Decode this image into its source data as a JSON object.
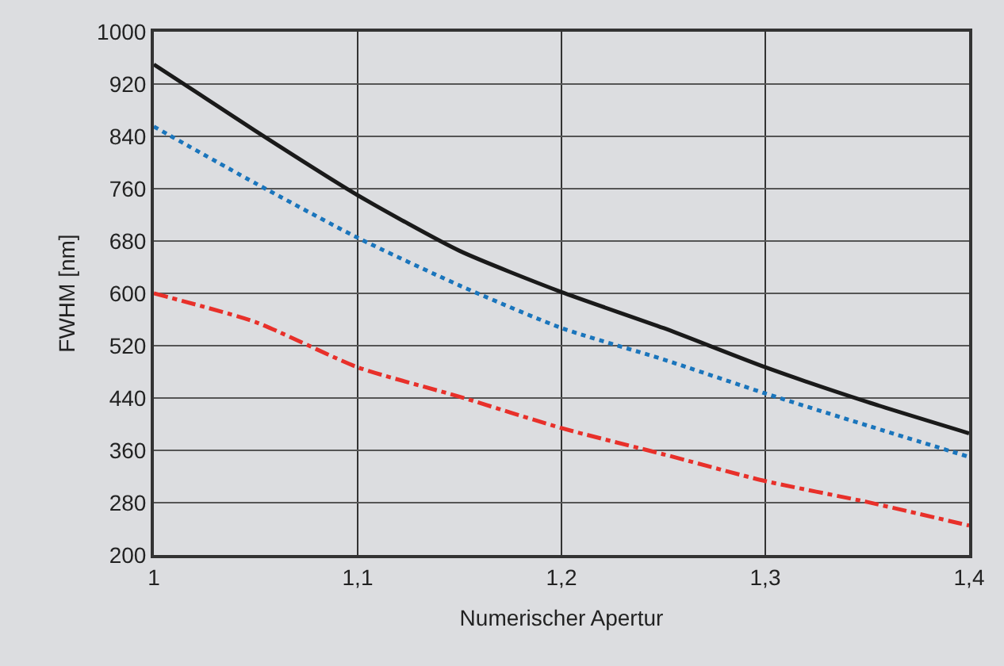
{
  "chart_data": {
    "type": "line",
    "xlabel": "Numerischer Apertur",
    "ylabel": "FWHM [nm]",
    "x": [
      1,
      1.05,
      1.1,
      1.15,
      1.2,
      1.25,
      1.3,
      1.35,
      1.4
    ],
    "series": [
      {
        "color": "#1a1a1a",
        "line_style": "solid",
        "values": [
          950,
          848,
          750,
          665,
          602,
          547,
          487,
          434,
          386
        ]
      },
      {
        "color": "#1a75bc",
        "line_style": "dotted",
        "values": [
          855,
          768,
          685,
          612,
          547,
          499,
          447,
          398,
          350
        ]
      },
      {
        "color": "#e8302a",
        "line_style": "dashdot",
        "values": [
          600,
          556,
          487,
          442,
          394,
          354,
          313,
          281,
          245
        ]
      }
    ],
    "xlim": [
      1,
      1.4
    ],
    "xticks": [
      1,
      {
        "value": 1.1,
        "label": "1,1"
      },
      {
        "value": 1.2,
        "label": "1,2"
      },
      {
        "value": 1.3,
        "label": "1,3"
      },
      {
        "value": 1.4,
        "label": "1,4"
      }
    ],
    "ylim": [
      200,
      1000
    ],
    "yticks": [
      200,
      280,
      360,
      440,
      520,
      600,
      680,
      760,
      840,
      920,
      1000
    ],
    "grid": true
  }
}
